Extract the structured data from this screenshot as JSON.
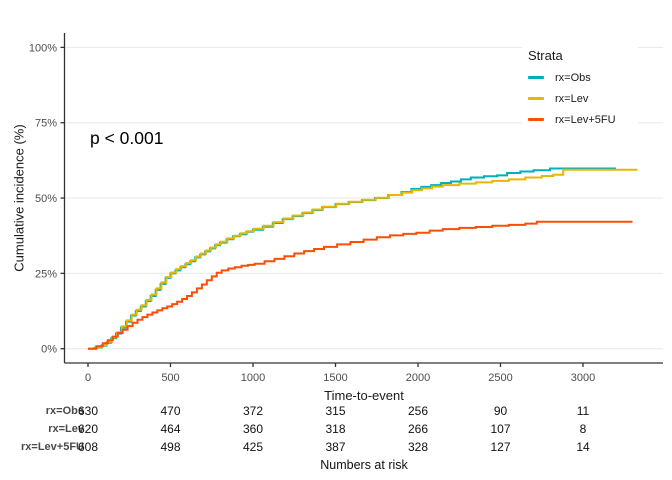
{
  "chart_data": {
    "type": "line",
    "subtype": "kaplan-meier-step-cumulative-incidence",
    "title": "",
    "xlabel": "Time-to-event",
    "ylabel": "Cumulative incidence (%)",
    "annotation": "p < 0.001",
    "legend_title": "Strata",
    "legend_position": "inside-top-right",
    "grid": "horizontal-only",
    "xlim": [
      0,
      3480
    ],
    "ylim": [
      0,
      105
    ],
    "x_ticks": [
      0,
      500,
      1000,
      1500,
      2000,
      2500,
      3000
    ],
    "y_ticks": [
      {
        "value": 0,
        "label": "0%"
      },
      {
        "value": 25,
        "label": "25%"
      },
      {
        "value": 50,
        "label": "50%"
      },
      {
        "value": 75,
        "label": "75%"
      },
      {
        "value": 100,
        "label": "100%"
      }
    ],
    "colors": {
      "grid": "#E8E8E8",
      "axis": "#333333",
      "tick_label": "#4D4D4D"
    },
    "series": [
      {
        "name": "rx=Obs",
        "color": "#00AFBB",
        "points": [
          [
            0,
            0
          ],
          [
            40,
            0.3
          ],
          [
            80,
            1
          ],
          [
            110,
            2
          ],
          [
            140,
            3.5
          ],
          [
            170,
            5
          ],
          [
            200,
            7
          ],
          [
            230,
            9
          ],
          [
            260,
            11
          ],
          [
            290,
            12.5
          ],
          [
            320,
            14
          ],
          [
            350,
            15.8
          ],
          [
            380,
            17.5
          ],
          [
            410,
            19.5
          ],
          [
            440,
            21.5
          ],
          [
            470,
            23.5
          ],
          [
            500,
            25
          ],
          [
            530,
            26
          ],
          [
            560,
            27
          ],
          [
            590,
            28
          ],
          [
            620,
            29
          ],
          [
            650,
            30.3
          ],
          [
            680,
            31.3
          ],
          [
            710,
            32.3
          ],
          [
            740,
            33.3
          ],
          [
            770,
            34.3
          ],
          [
            800,
            35.2
          ],
          [
            840,
            36.3
          ],
          [
            880,
            37.3
          ],
          [
            920,
            38
          ],
          [
            960,
            38.8
          ],
          [
            1000,
            39.5
          ],
          [
            1060,
            40.5
          ],
          [
            1120,
            41.7
          ],
          [
            1180,
            43
          ],
          [
            1240,
            44
          ],
          [
            1300,
            45
          ],
          [
            1360,
            46
          ],
          [
            1420,
            47
          ],
          [
            1500,
            48
          ],
          [
            1580,
            48.7
          ],
          [
            1660,
            49.3
          ],
          [
            1740,
            50
          ],
          [
            1820,
            51
          ],
          [
            1900,
            52
          ],
          [
            1960,
            53
          ],
          [
            2020,
            53.7
          ],
          [
            2080,
            54.3
          ],
          [
            2140,
            55
          ],
          [
            2200,
            55.5
          ],
          [
            2260,
            56.2
          ],
          [
            2320,
            56.8
          ],
          [
            2400,
            57.2
          ],
          [
            2480,
            57.5
          ],
          [
            2540,
            58.3
          ],
          [
            2620,
            58.8
          ],
          [
            2700,
            59.2
          ],
          [
            2800,
            59.8
          ],
          [
            3200,
            59.8
          ]
        ]
      },
      {
        "name": "rx=Lev",
        "color": "#E7B800",
        "points": [
          [
            0,
            0
          ],
          [
            45,
            0.4
          ],
          [
            85,
            1.2
          ],
          [
            115,
            2.3
          ],
          [
            145,
            3.8
          ],
          [
            175,
            5.4
          ],
          [
            205,
            7.4
          ],
          [
            235,
            9.4
          ],
          [
            265,
            11.3
          ],
          [
            295,
            12.9
          ],
          [
            325,
            14.4
          ],
          [
            355,
            16.2
          ],
          [
            385,
            18
          ],
          [
            415,
            20
          ],
          [
            445,
            22
          ],
          [
            475,
            23.8
          ],
          [
            505,
            25.3
          ],
          [
            535,
            26.4
          ],
          [
            565,
            27.4
          ],
          [
            595,
            28.4
          ],
          [
            625,
            29.4
          ],
          [
            655,
            30.6
          ],
          [
            685,
            31.6
          ],
          [
            715,
            32.6
          ],
          [
            745,
            33.6
          ],
          [
            775,
            34.6
          ],
          [
            805,
            35.5
          ],
          [
            845,
            36.6
          ],
          [
            885,
            37.5
          ],
          [
            925,
            38.3
          ],
          [
            965,
            39
          ],
          [
            1005,
            39.8
          ],
          [
            1065,
            40.8
          ],
          [
            1125,
            42
          ],
          [
            1185,
            43.2
          ],
          [
            1245,
            44.2
          ],
          [
            1305,
            45.2
          ],
          [
            1365,
            46.2
          ],
          [
            1425,
            47.1
          ],
          [
            1505,
            48.1
          ],
          [
            1585,
            48.8
          ],
          [
            1665,
            49.4
          ],
          [
            1745,
            50.1
          ],
          [
            1825,
            51
          ],
          [
            1905,
            51.8
          ],
          [
            1965,
            52.6
          ],
          [
            2025,
            53.2
          ],
          [
            2085,
            53.8
          ],
          [
            2150,
            54.3
          ],
          [
            2250,
            54.8
          ],
          [
            2350,
            55.2
          ],
          [
            2450,
            55.7
          ],
          [
            2550,
            56.2
          ],
          [
            2650,
            56.8
          ],
          [
            2750,
            57.3
          ],
          [
            2820,
            57.7
          ],
          [
            2880,
            59.4
          ],
          [
            3330,
            59.4
          ]
        ]
      },
      {
        "name": "rx=Lev+5FU",
        "color": "#FC4E07",
        "points": [
          [
            0,
            0
          ],
          [
            50,
            0.8
          ],
          [
            90,
            1.8
          ],
          [
            120,
            2.8
          ],
          [
            150,
            4
          ],
          [
            180,
            5.2
          ],
          [
            210,
            6.3
          ],
          [
            240,
            7.5
          ],
          [
            270,
            8.6
          ],
          [
            300,
            9.6
          ],
          [
            330,
            10.5
          ],
          [
            360,
            11.3
          ],
          [
            390,
            12
          ],
          [
            420,
            12.7
          ],
          [
            450,
            13.4
          ],
          [
            480,
            14
          ],
          [
            510,
            14.8
          ],
          [
            540,
            15.6
          ],
          [
            570,
            16.5
          ],
          [
            600,
            17.5
          ],
          [
            630,
            18.7
          ],
          [
            660,
            20
          ],
          [
            690,
            21.3
          ],
          [
            720,
            22.7
          ],
          [
            750,
            24
          ],
          [
            780,
            25.2
          ],
          [
            810,
            26
          ],
          [
            850,
            26.6
          ],
          [
            890,
            27
          ],
          [
            930,
            27.5
          ],
          [
            970,
            27.8
          ],
          [
            1010,
            28.2
          ],
          [
            1070,
            29
          ],
          [
            1130,
            29.8
          ],
          [
            1190,
            30.7
          ],
          [
            1250,
            31.6
          ],
          [
            1310,
            32.4
          ],
          [
            1370,
            33.1
          ],
          [
            1430,
            33.8
          ],
          [
            1510,
            34.6
          ],
          [
            1590,
            35.4
          ],
          [
            1670,
            36.2
          ],
          [
            1750,
            37
          ],
          [
            1830,
            37.6
          ],
          [
            1910,
            38.1
          ],
          [
            1990,
            38.5
          ],
          [
            2070,
            39.2
          ],
          [
            2150,
            39.7
          ],
          [
            2250,
            40.1
          ],
          [
            2350,
            40.4
          ],
          [
            2450,
            40.8
          ],
          [
            2550,
            41.1
          ],
          [
            2650,
            41.5
          ],
          [
            2720,
            42.1
          ],
          [
            3300,
            42.1
          ]
        ]
      }
    ]
  },
  "risk_table": {
    "caption": "Numbers at risk",
    "times": [
      0,
      500,
      1000,
      1500,
      2000,
      2500,
      3000
    ],
    "rows": [
      {
        "label": "rx=Obs",
        "values": [
          630,
          470,
          372,
          315,
          256,
          90,
          11
        ]
      },
      {
        "label": "rx=Lev",
        "values": [
          620,
          464,
          360,
          318,
          266,
          107,
          8
        ]
      },
      {
        "label": "rx=Lev+5FU",
        "values": [
          608,
          498,
          425,
          387,
          328,
          127,
          14
        ]
      }
    ]
  }
}
